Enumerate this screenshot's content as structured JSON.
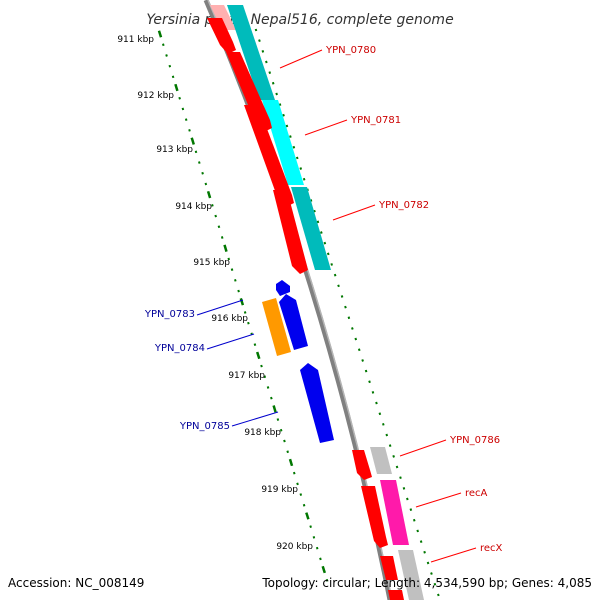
{
  "title": "Yersinia pestis Nepal516, complete genome",
  "footer": {
    "accession": "Accession: NC_008149",
    "topology": "Topology: circular; Length: 4,534,590 bp; Genes: 4,085"
  },
  "ticks": [
    "911 kbp",
    "912 kbp",
    "913 kbp",
    "914 kbp",
    "915 kbp",
    "916 kbp",
    "917 kbp",
    "918 kbp",
    "919 kbp",
    "920 kbp"
  ],
  "genes": [
    {
      "name": "YPN_0780",
      "strand": "reverse"
    },
    {
      "name": "YPN_0781",
      "strand": "reverse"
    },
    {
      "name": "YPN_0782",
      "strand": "reverse"
    },
    {
      "name": "YPN_0783",
      "strand": "forward"
    },
    {
      "name": "YPN_0784",
      "strand": "forward"
    },
    {
      "name": "YPN_0785",
      "strand": "forward"
    },
    {
      "name": "YPN_0786",
      "strand": "reverse"
    },
    {
      "name": "recA",
      "strand": "reverse"
    },
    {
      "name": "recX",
      "strand": "reverse"
    }
  ],
  "colors": {
    "reverse_gene": "#ff0000",
    "forward_gene": "#0000ee",
    "reverse_label": "#cc0000",
    "forward_label": "#000099",
    "tick": "#007700",
    "backbone": "#808080",
    "cog_cyan": "#00cccc",
    "cog_orange": "#ff9900",
    "cog_magenta": "#ff1aaa",
    "cog_gray": "#c0c0c0",
    "cog_pink": "#ffb0b0"
  }
}
